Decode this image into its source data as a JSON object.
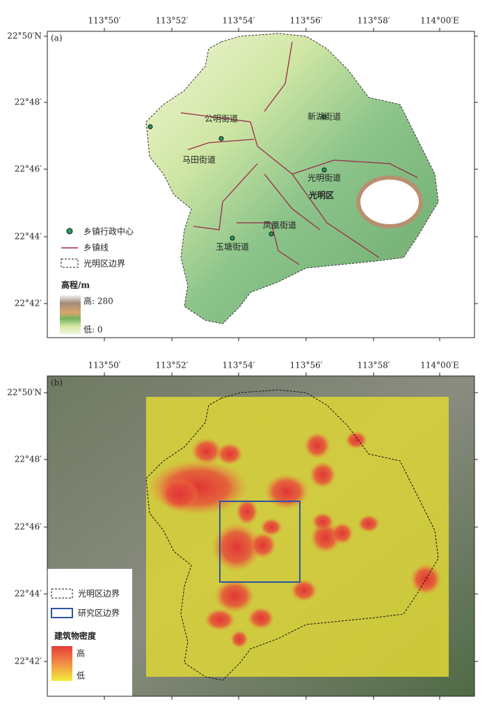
{
  "panels": [
    {
      "label": "(a)",
      "x_ticks": [
        "113°50′",
        "113°52′",
        "113°54′",
        "113°56′",
        "113°58′",
        "114°00′E"
      ],
      "y_ticks": [
        "22°50′N",
        "22°48′",
        "22°46′",
        "22°44′",
        "22°42′"
      ],
      "places": [
        "公明街道",
        "新湖街道",
        "马田街道",
        "光明街道",
        "光明区",
        "凤凰街道",
        "玉塘街道"
      ],
      "legend": {
        "center": "乡镇行政中心",
        "line": "乡镇线",
        "boundary": "光明区边界",
        "ramp_title": "高程/m",
        "high": "高: 280",
        "low": "低: 0"
      }
    },
    {
      "label": "(b)",
      "x_ticks": [
        "113°50′",
        "113°52′",
        "113°54′",
        "113°56′",
        "113°58′",
        "114°00′E"
      ],
      "y_ticks": [
        "22°50′N",
        "22°48′",
        "22°46′",
        "22°44′",
        "22°42′"
      ],
      "legend": {
        "boundary": "光明区边界",
        "study": "研究区边界",
        "ramp_title": "建筑物密度",
        "high": "高",
        "low": "低"
      }
    }
  ]
}
